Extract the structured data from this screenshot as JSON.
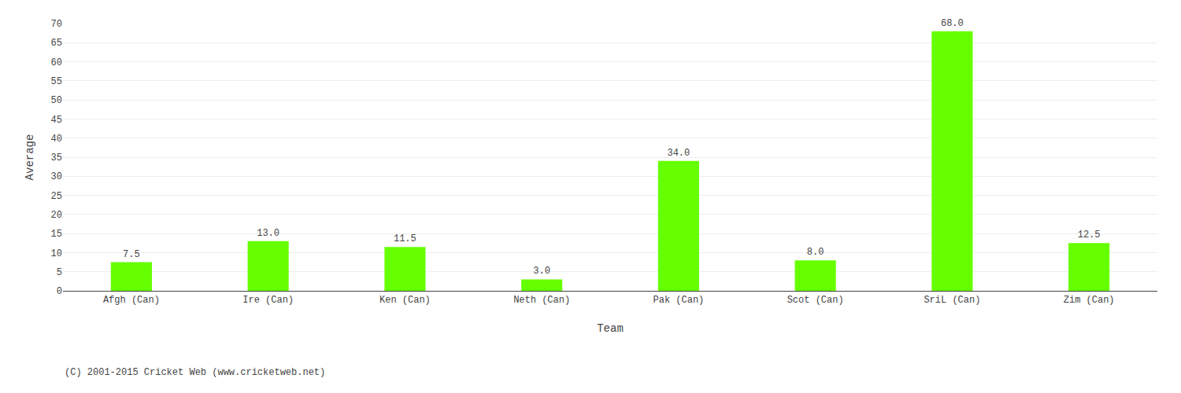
{
  "chart_data": {
    "type": "bar",
    "categories": [
      "Afgh (Can)",
      "Ire (Can)",
      "Ken (Can)",
      "Neth (Can)",
      "Pak (Can)",
      "Scot (Can)",
      "SriL (Can)",
      "Zim (Can)"
    ],
    "values": [
      7.5,
      13.0,
      11.5,
      3.0,
      34.0,
      8.0,
      68.0,
      12.5
    ],
    "value_labels": [
      "7.5",
      "13.0",
      "11.5",
      "3.0",
      "34.0",
      "8.0",
      "68.0",
      "12.5"
    ],
    "data_labels": true,
    "color": "#66ff00",
    "xlabel": "Team",
    "ylabel": "Average",
    "ylim": [
      0,
      70
    ],
    "yticks": [
      0,
      5,
      10,
      15,
      20,
      25,
      30,
      35,
      40,
      45,
      50,
      55,
      60,
      65,
      70
    ],
    "grid": true,
    "annotations": [
      "(C) 2001-2015 Cricket Web (www.cricketweb.net)"
    ]
  }
}
